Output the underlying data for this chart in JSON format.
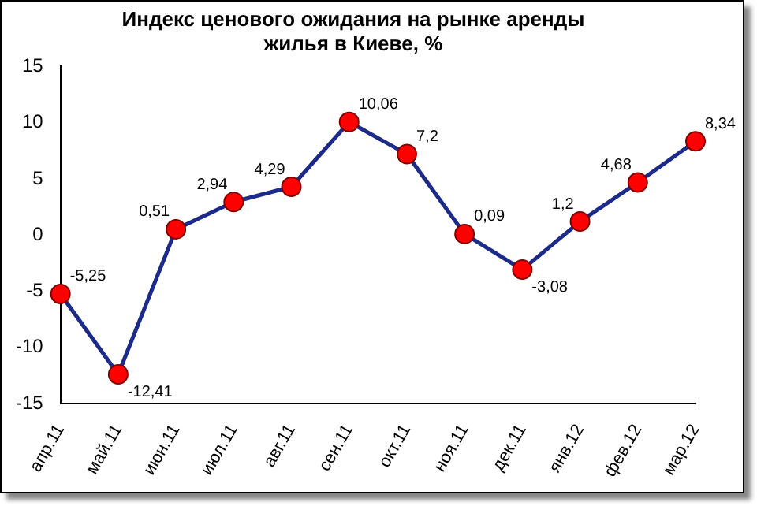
{
  "chart_data": {
    "type": "line",
    "title": "Индекс ценового ожидания на рынке аренды\nжилья в Киеве, %",
    "categories": [
      "апр.11",
      "май.11",
      "июн.11",
      "июл.11",
      "авг.11",
      "сен.11",
      "окт.11",
      "ноя.11",
      "дек.11",
      "янв.12",
      "фев.12",
      "мар.12"
    ],
    "series": [
      {
        "color": "#1c2a8a",
        "values": [
          -5.25,
          -12.41,
          0.51,
          2.94,
          4.29,
          10.06,
          7.2,
          0.09,
          -3.08,
          1.2,
          4.68,
          8.34
        ],
        "value_labels": [
          "-5,25",
          "-12,41",
          "0,51",
          "2,94",
          "4,29",
          "10,06",
          "7,2",
          "0,09",
          "-3,08",
          "1,2",
          "4,68",
          "8,34"
        ]
      }
    ],
    "colors": [
      "#ff0000",
      "#ff0000",
      "#ff0000",
      "#ff0000",
      "#ff0000",
      "#ff0000",
      "#ff0000",
      "#ff0000",
      "#ff0000",
      "#ff0000",
      "#ff0000",
      "#ff0000"
    ],
    "ylim": [
      -15,
      15
    ],
    "yticks": [
      -15,
      -10,
      -5,
      0,
      5,
      10,
      15
    ],
    "grid": false,
    "legend": false,
    "marker": "circle",
    "line_style": "solid"
  }
}
